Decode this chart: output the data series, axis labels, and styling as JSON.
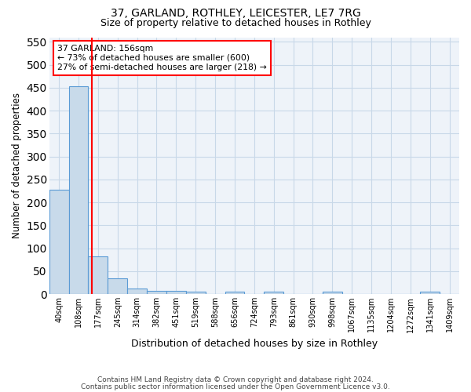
{
  "title1": "37, GARLAND, ROTHLEY, LEICESTER, LE7 7RG",
  "title2": "Size of property relative to detached houses in Rothley",
  "xlabel": "Distribution of detached houses by size in Rothley",
  "ylabel": "Number of detached properties",
  "bins": [
    "40sqm",
    "108sqm",
    "177sqm",
    "245sqm",
    "314sqm",
    "382sqm",
    "451sqm",
    "519sqm",
    "588sqm",
    "656sqm",
    "724sqm",
    "793sqm",
    "861sqm",
    "930sqm",
    "998sqm",
    "1067sqm",
    "1135sqm",
    "1204sqm",
    "1272sqm",
    "1341sqm",
    "1409sqm"
  ],
  "bar_heights": [
    228,
    453,
    83,
    35,
    13,
    8,
    7,
    5,
    0,
    5,
    0,
    5,
    0,
    0,
    5,
    0,
    0,
    0,
    0,
    5,
    0
  ],
  "bar_color": "#c8daea",
  "bar_edge_color": "#5b9bd5",
  "annotation_text": "37 GARLAND: 156sqm\n← 73% of detached houses are smaller (600)\n27% of semi-detached houses are larger (218) →",
  "annotation_box_color": "white",
  "annotation_box_edge": "red",
  "vline_color": "red",
  "property_sqm": 156,
  "bin_start_sqm": [
    40,
    108,
    177,
    245,
    314,
    382,
    451,
    519,
    588,
    656,
    724,
    793,
    861,
    930,
    998,
    1067,
    1135,
    1204,
    1272,
    1341,
    1409
  ],
  "footer1": "Contains HM Land Registry data © Crown copyright and database right 2024.",
  "footer2": "Contains public sector information licensed under the Open Government Licence v3.0.",
  "bg_color": "#eef3f9",
  "grid_color": "#c8d8e8",
  "ylim": [
    0,
    560
  ],
  "yticks": [
    0,
    50,
    100,
    150,
    200,
    250,
    300,
    350,
    400,
    450,
    500,
    550
  ]
}
